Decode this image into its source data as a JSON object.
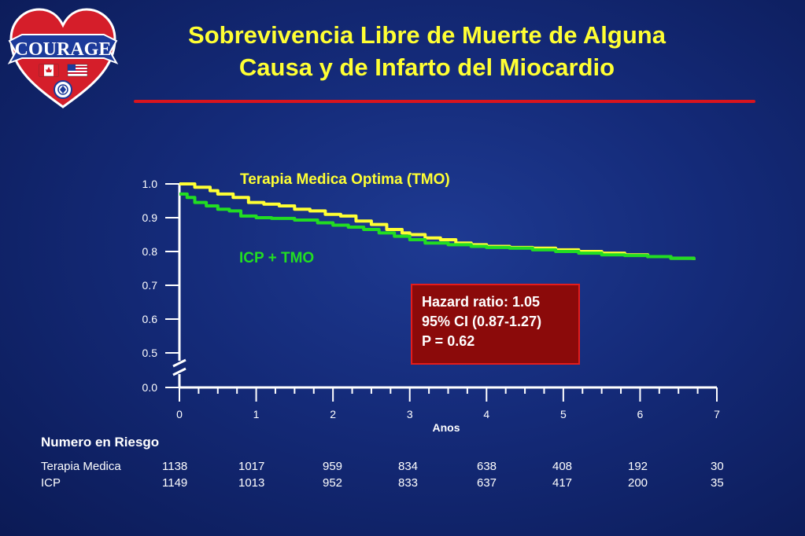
{
  "slide": {
    "title_line1": "Sobrevivencia Libre de Muerte de Alguna",
    "title_line2": "Causa y de Infarto del Miocardio",
    "logo_text": "COURAGE",
    "colors": {
      "title": "#ffff33",
      "rule": "#d8141e",
      "tmo_series": "#ffff33",
      "icp_series": "#22dd22",
      "hr_box_fill": "#8b0a0a",
      "hr_box_border": "#e41c1c"
    }
  },
  "chart_data": {
    "type": "line",
    "xlabel": "Anos",
    "ylabel": "",
    "xlim": [
      0,
      7
    ],
    "ylim": [
      0.0,
      1.0
    ],
    "axis_break": "between 0.0 and 0.5",
    "x_ticks": [
      "0",
      "1",
      "2",
      "3",
      "4",
      "5",
      "6",
      "7"
    ],
    "y_ticks": [
      "1.0",
      "0.9",
      "0.8",
      "0.7",
      "0.6",
      "0.5",
      "0.0"
    ],
    "series": [
      {
        "name": "Terapia Medica Optima (TMO)",
        "color": "#ffff33",
        "label_color": "#ffff33",
        "x": [
          0,
          0.2,
          0.4,
          0.5,
          0.7,
          0.9,
          1.1,
          1.3,
          1.5,
          1.7,
          1.9,
          2.1,
          2.3,
          2.5,
          2.7,
          2.9,
          3.0,
          3.2,
          3.4,
          3.6,
          3.8,
          4.0,
          4.3,
          4.6,
          4.9,
          5.2,
          5.5,
          5.8,
          6.1,
          6.4,
          6.7
        ],
        "values": [
          1.0,
          0.99,
          0.98,
          0.97,
          0.96,
          0.945,
          0.94,
          0.935,
          0.925,
          0.92,
          0.91,
          0.905,
          0.89,
          0.88,
          0.865,
          0.855,
          0.85,
          0.84,
          0.835,
          0.825,
          0.82,
          0.815,
          0.812,
          0.81,
          0.805,
          0.8,
          0.795,
          0.79,
          0.785,
          0.78,
          0.775
        ]
      },
      {
        "name": "ICP + TMO",
        "color": "#22dd22",
        "label_color": "#22dd22",
        "x": [
          0,
          0.1,
          0.2,
          0.35,
          0.5,
          0.65,
          0.8,
          1.0,
          1.2,
          1.5,
          1.8,
          2.0,
          2.2,
          2.4,
          2.6,
          2.8,
          3.0,
          3.2,
          3.5,
          3.8,
          4.0,
          4.3,
          4.6,
          4.9,
          5.2,
          5.5,
          5.8,
          6.1,
          6.4,
          6.7
        ],
        "values": [
          0.97,
          0.96,
          0.945,
          0.935,
          0.925,
          0.92,
          0.905,
          0.9,
          0.898,
          0.893,
          0.885,
          0.878,
          0.872,
          0.865,
          0.855,
          0.845,
          0.835,
          0.825,
          0.82,
          0.815,
          0.812,
          0.81,
          0.805,
          0.8,
          0.795,
          0.79,
          0.788,
          0.785,
          0.78,
          0.775
        ]
      }
    ],
    "annotation": {
      "line1": "Hazard ratio: 1.05",
      "line2": "95% CI (0.87-1.27)",
      "line3": "P = 0.62"
    },
    "risk_table": {
      "title": "Numero en Riesgo",
      "rows": [
        {
          "label": "Terapia Medica",
          "values": [
            "1138",
            "1017",
            "959",
            "834",
            "638",
            "408",
            "192",
            "30"
          ]
        },
        {
          "label": "ICP",
          "values": [
            "1149",
            "1013",
            "952",
            "833",
            "637",
            "417",
            "200",
            "35"
          ]
        }
      ]
    }
  }
}
